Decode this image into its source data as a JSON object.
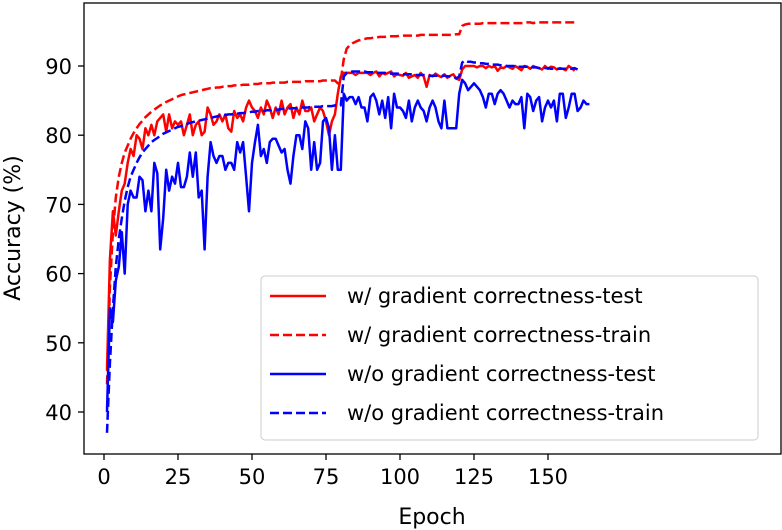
{
  "chart_data": {
    "type": "line",
    "title": "",
    "xlabel": "Epoch",
    "ylabel": "Accuracy (%)",
    "xlim": [
      -7,
      167
    ],
    "ylim": [
      35.3,
      99
    ],
    "xticks": [
      0,
      25,
      50,
      75,
      100,
      125,
      150
    ],
    "yticks": [
      40,
      50,
      60,
      70,
      80,
      90
    ],
    "grid": false,
    "legend_position": "lower right",
    "series": [
      {
        "name": "w/ gradient correctness-test",
        "color": "#ff0000",
        "style": "solid",
        "x_start": 1,
        "values": [
          46,
          62,
          69,
          65.5,
          69,
          72,
          73,
          76,
          78,
          77,
          80,
          79.5,
          78,
          81,
          80,
          81.5,
          80,
          82,
          82.5,
          83,
          80.5,
          83,
          81,
          82,
          81.5,
          82,
          80,
          81.5,
          83,
          80,
          81.5,
          82,
          80,
          80.5,
          84,
          83,
          81.5,
          82,
          83,
          82,
          83,
          81,
          80.5,
          83.5,
          82.5,
          83,
          82,
          84,
          85,
          84,
          83.5,
          82.5,
          84,
          83,
          85,
          84,
          82.5,
          84,
          83,
          85,
          83,
          84,
          84.5,
          82.5,
          84,
          83,
          85,
          83.5,
          83.5,
          84,
          82,
          83,
          84,
          83.5,
          82,
          80,
          82,
          83,
          86,
          88.5,
          89,
          89,
          89,
          89,
          88.7,
          89,
          89,
          89,
          89,
          88.7,
          89,
          89.2,
          88.5,
          89,
          88.8,
          89,
          89.2,
          88.5,
          88.8,
          88.7,
          88.6,
          89,
          88.3,
          88.5,
          88.7,
          88.3,
          89,
          88.5,
          87,
          88.7,
          88.5,
          88.9,
          88.6,
          88.4,
          88.8,
          88.3,
          88.6,
          88.8,
          88.2,
          88,
          89.5,
          90,
          90,
          90,
          90,
          89.8,
          90,
          90,
          89.7,
          90,
          89.8,
          90,
          89.3,
          89.8,
          89.7,
          90,
          89.8,
          89.6,
          90,
          89.7,
          89.4,
          90,
          89.9,
          89.6,
          90,
          89.8,
          89.7,
          89.5,
          90,
          89.6,
          89.9,
          89.8,
          89.5,
          89.7,
          89.6,
          89.4,
          90,
          89.7,
          89.3
        ]
      },
      {
        "name": "w/ gradient correctness-train",
        "color": "#ff0000",
        "style": "dashed",
        "x_start": 1,
        "values": [
          44,
          58,
          66,
          71,
          74,
          76,
          77.5,
          78.5,
          79.5,
          80.3,
          81,
          81.6,
          82.1,
          82.6,
          83,
          83.4,
          83.7,
          84,
          84.3,
          84.5,
          84.8,
          85,
          85.2,
          85.4,
          85.6,
          85.8,
          85.9,
          86,
          86.1,
          86.2,
          86.3,
          86.4,
          86.5,
          86.6,
          86.7,
          86.8,
          86.8,
          86.9,
          86.9,
          87,
          87,
          87.1,
          87.1,
          87.2,
          87.2,
          87.2,
          87.3,
          87.3,
          87.3,
          87.4,
          87.4,
          87.4,
          87.5,
          87.5,
          87.5,
          87.5,
          87.6,
          87.6,
          87.6,
          87.6,
          87.6,
          87.7,
          87.7,
          87.7,
          87.7,
          87.7,
          87.7,
          87.8,
          87.8,
          87.8,
          87.8,
          87.8,
          87.8,
          87.9,
          87.9,
          87.9,
          87.9,
          87.9,
          87.5,
          88,
          91,
          92.5,
          93,
          93.3,
          93.5,
          93.7,
          93.8,
          93.9,
          94,
          94,
          94.1,
          94.1,
          94.2,
          94.2,
          94.2,
          94.3,
          94.3,
          94.3,
          94.3,
          94.4,
          94.4,
          94.4,
          94.4,
          94.4,
          94.4,
          94.4,
          94.5,
          94.5,
          94.5,
          94.5,
          94.5,
          94.5,
          94.5,
          94.5,
          94.5,
          94.5,
          94.5,
          94.5,
          94.6,
          94.6,
          95.8,
          96,
          96.1,
          96.1,
          96.1,
          96.1,
          96.1,
          96.2,
          96.2,
          96.2,
          96.2,
          96.2,
          96.2,
          96.2,
          96.2,
          96.2,
          96.2,
          96.2,
          96.2,
          96.2,
          96.2,
          96.2,
          96.3,
          96.3,
          96.2,
          96.3,
          96.3,
          96.3,
          96.3,
          96.3,
          96.3,
          96.3,
          96.3,
          96.3,
          96.3,
          96.3,
          96.3,
          96.3,
          96.3,
          96.3
        ]
      },
      {
        "name": "w/o gradient correctness-test",
        "color": "#0000ff",
        "style": "solid",
        "x_start": 1,
        "values": [
          40,
          55,
          53,
          59,
          61,
          66,
          60,
          70,
          72,
          71,
          71,
          74,
          73.5,
          69,
          72,
          69,
          76,
          74.5,
          63.5,
          68,
          75,
          72,
          74,
          73,
          76,
          72.5,
          72.5,
          74,
          77.5,
          74,
          77.5,
          71,
          72,
          63.5,
          74,
          79,
          77,
          76,
          77,
          77,
          75,
          76,
          76,
          75,
          79,
          77.5,
          79,
          74,
          69,
          76,
          79,
          81.5,
          77,
          78,
          76,
          79,
          79.5,
          79.5,
          78.5,
          77.5,
          78,
          75,
          73,
          77,
          80,
          80,
          78,
          82,
          81,
          75,
          79,
          75,
          76,
          82,
          82.5,
          81,
          75,
          80,
          75,
          75,
          86,
          85,
          85.5,
          85.5,
          84.5,
          85.5,
          84,
          84,
          82,
          85.5,
          86,
          85,
          83,
          85,
          82.5,
          85.5,
          81,
          86,
          84,
          84,
          83.5,
          82.5,
          85,
          82,
          84,
          85,
          84,
          83.5,
          82,
          84,
          85,
          84,
          82,
          81,
          85,
          81,
          81,
          81,
          81,
          86,
          88,
          87.5,
          86.5,
          87,
          87.5,
          87,
          86.5,
          85.5,
          84,
          86,
          86,
          84.5,
          86,
          86.5,
          86,
          85,
          84,
          85,
          84.5,
          84.5,
          85.5,
          81,
          86,
          85.5,
          83.5,
          85,
          85.5,
          82,
          84,
          85,
          84,
          85,
          82,
          86,
          86,
          82.5,
          84,
          86,
          86,
          83.5,
          84,
          85,
          84.5,
          84.5
        ]
      },
      {
        "name": "w/o gradient correctness-train",
        "color": "#0000ff",
        "style": "dashed",
        "x_start": 1,
        "values": [
          37,
          47,
          55,
          61,
          65,
          68,
          70.5,
          72.5,
          74,
          75,
          76,
          76.8,
          77.5,
          78,
          78.5,
          79,
          79.3,
          79.6,
          79.9,
          80.2,
          80.4,
          80.6,
          80.8,
          81,
          81.2,
          81.3,
          81.5,
          81.6,
          81.8,
          81.9,
          82,
          82.1,
          82.2,
          82.3,
          82.4,
          82.5,
          82.6,
          82.7,
          82.8,
          82.8,
          82.9,
          83,
          83,
          83.1,
          83.1,
          83.2,
          83.2,
          83.3,
          83.3,
          83.4,
          83.4,
          83.5,
          83.5,
          83.5,
          83.6,
          83.6,
          83.7,
          83.7,
          83.7,
          83.8,
          83.8,
          83.8,
          83.9,
          83.9,
          83.9,
          84,
          84,
          84,
          84,
          84.1,
          84.1,
          84.1,
          84.1,
          84.2,
          84.2,
          84.2,
          84.2,
          84.3,
          84.3,
          84.3,
          88.5,
          89,
          89.1,
          89.2,
          89.2,
          89.2,
          89.2,
          89.2,
          89.1,
          89.1,
          89.1,
          89,
          89,
          89,
          89,
          88.9,
          88.9,
          88.9,
          88.9,
          88.9,
          88.8,
          88.8,
          88.8,
          88.8,
          88.7,
          88.7,
          88.7,
          88.7,
          88.7,
          88.6,
          88.6,
          88.6,
          88.6,
          88.6,
          88.6,
          88.5,
          88.5,
          88.5,
          88.2,
          88.5,
          90.5,
          90.8,
          90.6,
          90.6,
          90.5,
          90.5,
          90.4,
          90.4,
          90.3,
          90.3,
          90.2,
          90.2,
          90.2,
          90.1,
          90.1,
          90,
          90,
          90,
          90,
          89.9,
          89.9,
          89.9,
          89.9,
          89.8,
          89.8,
          89.8,
          89.7,
          89.7,
          89.7,
          89.7,
          89.6,
          89.6,
          89.6,
          89.6,
          89.6,
          89.6,
          89.6,
          89.6,
          89.7,
          89.5
        ]
      }
    ]
  },
  "axes": {
    "xlabel": "Epoch",
    "ylabel": "Accuracy (%)",
    "xtick_labels": [
      "0",
      "25",
      "50",
      "75",
      "100",
      "125",
      "150"
    ],
    "ytick_labels": [
      "40",
      "50",
      "60",
      "70",
      "80",
      "90"
    ]
  },
  "legend": {
    "items": [
      {
        "label": "w/ gradient correctness-test",
        "color": "#ff0000",
        "style": "solid"
      },
      {
        "label": "w/ gradient correctness-train",
        "color": "#ff0000",
        "style": "dashed"
      },
      {
        "label": "w/o gradient correctness-test",
        "color": "#0000ff",
        "style": "solid"
      },
      {
        "label": "w/o gradient correctness-train",
        "color": "#0000ff",
        "style": "dashed"
      }
    ]
  }
}
